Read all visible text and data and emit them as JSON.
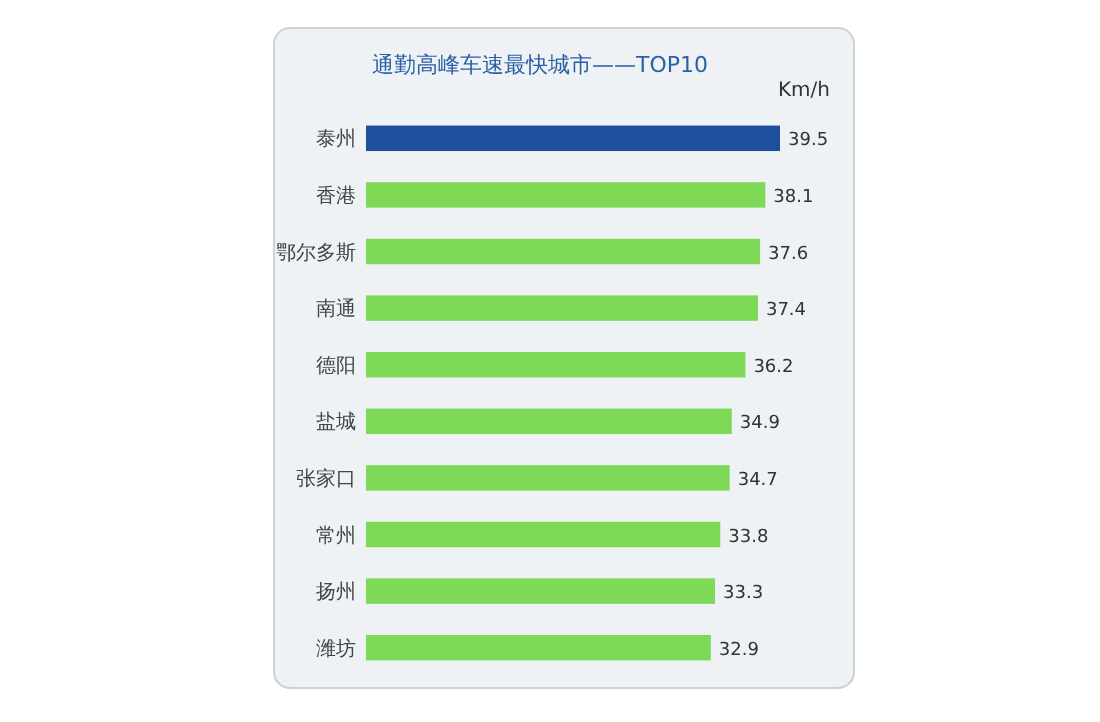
{
  "chart_data": {
    "type": "bar",
    "orientation": "horizontal",
    "title": "通勤高峰车速最快城市——TOP10",
    "annotations": [
      "Km/h"
    ],
    "categories": [
      "泰州",
      "香港",
      "鄂尔多斯",
      "南通",
      "德阳",
      "盐城",
      "张家口",
      "常州",
      "扬州",
      "潍坊"
    ],
    "values": [
      39.5,
      38.1,
      37.6,
      37.4,
      36.2,
      34.9,
      34.7,
      33.8,
      33.3,
      32.9
    ],
    "colors": [
      "#1f4e9c",
      "#7ed957",
      "#7ed957",
      "#7ed957",
      "#7ed957",
      "#7ed957",
      "#7ed957",
      "#7ed957",
      "#7ed957",
      "#7ed957"
    ],
    "data_labels": true
  }
}
